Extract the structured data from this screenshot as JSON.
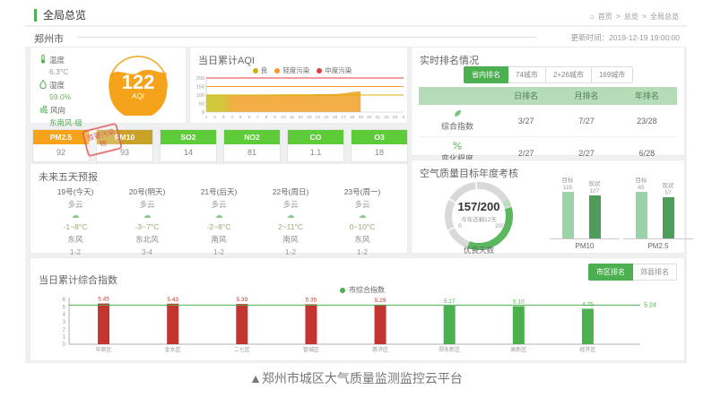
{
  "page": {
    "title": "全局总览",
    "breadcrumb": [
      "首页",
      "总览",
      "全局总览"
    ],
    "city": "郑州市",
    "update_time": "更新时间：2019-12-19 19:00:00",
    "caption": "▲郑州市城区大气质量监测监控云平台"
  },
  "colors": {
    "accent_green": "#4caf50",
    "aqi_orange": "#f5a31a",
    "table_header_green": "#b5dcb7",
    "bar_red": "#c23531",
    "bar_green": "#4caf50",
    "target_bar": "#9bd3a8",
    "current_bar": "#4f9d5d"
  },
  "weather": {
    "items": [
      {
        "icon": "thermometer-icon",
        "label": "温度",
        "value": "6.3°C",
        "value_color": "#999999"
      },
      {
        "icon": "droplet-icon",
        "label": "湿度",
        "value": "59.0%",
        "value_color": "#78b06e"
      },
      {
        "icon": "wind-icon",
        "label": "风向",
        "value": "东南风-级",
        "value_color": "#4caf50"
      }
    ],
    "aqi": {
      "value": "122",
      "label": "AQI"
    }
  },
  "pollutants": {
    "stamp": "首要污染物",
    "items": [
      {
        "name": "PM2.5",
        "value": "92",
        "color": "#f5a31a"
      },
      {
        "name": "PM10",
        "value": "93",
        "color": "#c9a227"
      },
      {
        "name": "SO2",
        "value": "14",
        "color": "#5ecc38"
      },
      {
        "name": "NO2",
        "value": "81",
        "color": "#5ecc38"
      },
      {
        "name": "CO",
        "value": "1.1",
        "color": "#5ecc38"
      },
      {
        "name": "O3",
        "value": "18",
        "color": "#5ecc38"
      }
    ]
  },
  "forecast": {
    "title": "未来五天预报",
    "days": [
      {
        "date": "19号(今天)",
        "weather": "多云",
        "temp": "-1~8°C",
        "wind": "东风",
        "force": "1-2"
      },
      {
        "date": "20号(明天)",
        "weather": "多云",
        "temp": "-3~7°C",
        "wind": "东北风",
        "force": "3-4"
      },
      {
        "date": "21号(后天)",
        "weather": "多云",
        "temp": "-2~8°C",
        "wind": "南风",
        "force": "1-2"
      },
      {
        "date": "22号(周日)",
        "weather": "多云",
        "temp": "2~11°C",
        "wind": "南风",
        "force": "1-2"
      },
      {
        "date": "23号(周一)",
        "weather": "多云",
        "temp": "0~10°C",
        "wind": "东风",
        "force": "1-2"
      }
    ]
  },
  "ranking": {
    "title": "实时排名情况",
    "tabs": [
      {
        "label": "省内排名",
        "active": true
      },
      {
        "label": "74城市",
        "active": false
      },
      {
        "label": "2+26城市",
        "active": false
      },
      {
        "label": "169城市",
        "active": false
      }
    ],
    "table": {
      "headers": [
        "",
        "日排名",
        "月排名",
        "年排名"
      ],
      "rows": [
        {
          "icon": "composite-index-icon",
          "label": "综合指数",
          "values": [
            "3/27",
            "7/27",
            "23/28"
          ]
        },
        {
          "icon": "change-degree-icon",
          "label": "变化程度",
          "values": [
            "2/27",
            "2/27",
            "6/28"
          ]
        }
      ]
    }
  },
  "assessment": {
    "title": "空气质量目标年度考核",
    "gauge": {
      "value": "157/200",
      "note": "今年还剩12天",
      "min": "0",
      "max": "200",
      "caption": "优良天数"
    },
    "bar_groups": [
      {
        "name": "PM10",
        "target_label": "目标",
        "target": 115,
        "current_label": "现状",
        "current": 107
      },
      {
        "name": "PM2.5",
        "target_label": "目标",
        "target": 65,
        "current_label": "现状",
        "current": 57
      }
    ]
  },
  "daily_index": {
    "title": "当日累计综合指数",
    "tabs": [
      {
        "label": "市区排名",
        "active": true
      },
      {
        "label": "郊县排名",
        "active": false
      }
    ],
    "legend": "市综合指数"
  },
  "chart_data": [
    {
      "type": "area",
      "title": "当日累计AQI",
      "x_labels": [
        "1",
        "2",
        "3",
        "4",
        "5",
        "6",
        "7",
        "8",
        "9",
        "10",
        "11",
        "12",
        "13",
        "14",
        "15",
        "16",
        "17",
        "18",
        "19",
        "20",
        "21",
        "22",
        "23",
        "0"
      ],
      "values": [
        100,
        100,
        100,
        101,
        101,
        102,
        102,
        103,
        103,
        104,
        104,
        104,
        104,
        105,
        105,
        106,
        110,
        118,
        122,
        null,
        null,
        null,
        null,
        null
      ],
      "ylim": [
        0,
        200
      ],
      "yticks": [
        0,
        50,
        100,
        150,
        200
      ],
      "legend": [
        {
          "label": "良",
          "color": "#d4b106"
        },
        {
          "label": "轻度污染",
          "color": "#f59a23"
        },
        {
          "label": "中度污染",
          "color": "#e23c39"
        }
      ],
      "thresholds": [
        {
          "value": 100,
          "color": "#d4b106"
        },
        {
          "value": 150,
          "color": "#f59a23"
        },
        {
          "value": 200,
          "color": "#e23c39"
        }
      ],
      "fill_left": "#cdc52f",
      "fill_main": "#f2a93b"
    },
    {
      "type": "bar",
      "title": "当日累计综合指数",
      "categories": [
        "中原区",
        "金水区",
        "二七区",
        "管城区",
        "惠济区",
        "郑东新区",
        "高新区",
        "经开区"
      ],
      "values": [
        5.45,
        5.43,
        5.39,
        5.35,
        5.29,
        5.17,
        5.1,
        4.75
      ],
      "bar_colors": [
        "#c23531",
        "#c23531",
        "#c23531",
        "#c23531",
        "#c23531",
        "#4caf50",
        "#4caf50",
        "#4caf50"
      ],
      "avg_line": {
        "value": 5.24,
        "color": "#4caf50"
      },
      "ylim": [
        0,
        6
      ],
      "yticks": [
        0,
        1,
        2,
        3,
        4,
        5,
        6
      ],
      "legend": "市综合指数",
      "legend_position": "top-right"
    }
  ]
}
